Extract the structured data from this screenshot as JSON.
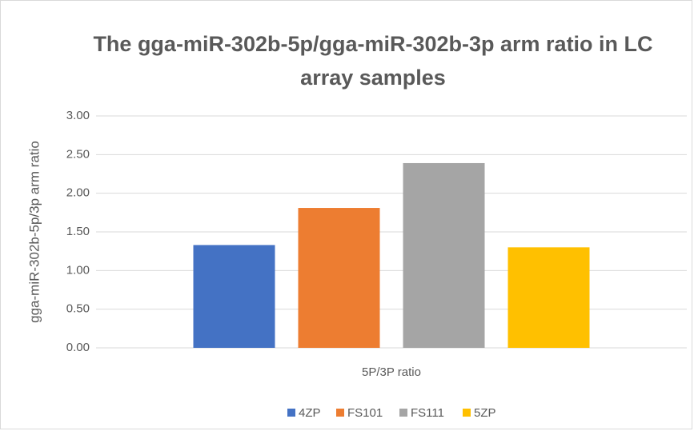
{
  "chart_data": {
    "type": "bar",
    "title": "The gga-miR-302b-5p/gga-miR-302b-3p arm ratio in LC array samples",
    "y_label": "gga-miR-302b-5p/3p arm ratio",
    "categories": [
      "5P/3P ratio"
    ],
    "series": [
      {
        "name": "4ZP",
        "color": "#4472c4",
        "values": [
          1.33
        ]
      },
      {
        "name": "FS101",
        "color": "#ed7d31",
        "values": [
          1.81
        ]
      },
      {
        "name": "FS111",
        "color": "#a5a5a5",
        "values": [
          2.39
        ]
      },
      {
        "name": "5ZP",
        "color": "#ffc000",
        "values": [
          1.3
        ]
      }
    ],
    "ylim": [
      0,
      3
    ],
    "yticks": [
      {
        "value": 0,
        "label": "0.00"
      },
      {
        "value": 0.5,
        "label": "0.50"
      },
      {
        "value": 1,
        "label": "1.00"
      },
      {
        "value": 1.5,
        "label": "1.50"
      },
      {
        "value": 2,
        "label": "2.00"
      },
      {
        "value": 2.5,
        "label": "2.50"
      },
      {
        "value": 3,
        "label": "3.00"
      }
    ],
    "grid": true,
    "legend": "bottom"
  }
}
